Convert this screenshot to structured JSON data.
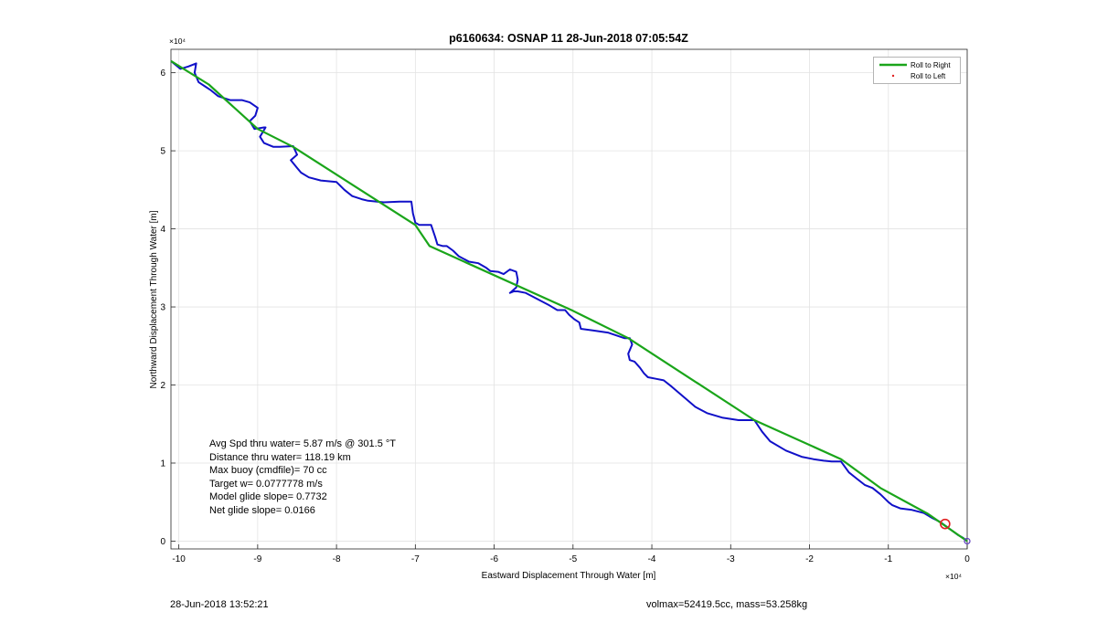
{
  "chart_data": {
    "type": "line",
    "title": "p6160634: OSNAP 11 28-Jun-2018 07:05:54Z",
    "xlabel": "Eastward Displacement Through Water [m]",
    "ylabel": "Northward Displacement Through Water [m]",
    "x_exponent_label": "×10⁴",
    "y_exponent_label": "×10⁴",
    "xlim": [
      -10.1,
      0
    ],
    "ylim": [
      -0.1,
      6.3
    ],
    "x_ticks": [
      "-10",
      "-9",
      "-8",
      "-7",
      "-6",
      "-5",
      "-4",
      "-3",
      "-2",
      "-1",
      "0"
    ],
    "y_ticks": [
      "0",
      "1",
      "2",
      "3",
      "4",
      "5",
      "6"
    ],
    "grid": true,
    "legend_position": "top-right",
    "series": [
      {
        "name": "Roll to Right",
        "color": "#1aa51a",
        "x": [
          -10.1,
          -9.62,
          -9.0,
          -8.55,
          -7.0,
          -6.82,
          -5.0,
          -4.3,
          -2.7,
          -1.6,
          -1.1,
          -0.5,
          0
        ],
        "y": [
          6.15,
          5.85,
          5.28,
          5.05,
          4.05,
          3.78,
          2.95,
          2.6,
          1.55,
          1.05,
          0.68,
          0.35,
          0
        ]
      },
      {
        "name": "Roll to Left",
        "color": "#e02020",
        "x": [],
        "y": []
      },
      {
        "name": "",
        "color": "#1010c8",
        "x": [
          -10.1,
          -9.98,
          -9.88,
          -9.78,
          -9.8,
          -9.75,
          -9.66,
          -9.6,
          -9.5,
          -9.35,
          -9.2,
          -9.1,
          -9.0,
          -9.03,
          -9.1,
          -9.04,
          -8.92,
          -8.9,
          -8.97,
          -8.92,
          -8.8,
          -8.72,
          -8.55,
          -8.5,
          -8.58,
          -8.5,
          -8.45,
          -8.35,
          -8.2,
          -8.0,
          -7.9,
          -7.8,
          -7.68,
          -7.6,
          -7.4,
          -7.2,
          -7.05,
          -7.03,
          -7.0,
          -6.95,
          -6.92,
          -6.8,
          -6.75,
          -6.72,
          -6.65,
          -6.6,
          -6.52,
          -6.45,
          -6.32,
          -6.2,
          -6.1,
          -6.05,
          -5.95,
          -5.88,
          -5.8,
          -5.72,
          -5.7,
          -5.72,
          -5.8,
          -5.75,
          -5.7,
          -5.6,
          -5.45,
          -5.3,
          -5.2,
          -5.1,
          -5.05,
          -4.98,
          -4.92,
          -4.9,
          -4.75,
          -4.55,
          -4.35,
          -4.28,
          -4.25,
          -4.3,
          -4.28,
          -4.22,
          -4.15,
          -4.1,
          -4.05,
          -3.95,
          -3.85,
          -3.75,
          -3.6,
          -3.45,
          -3.3,
          -3.1,
          -2.9,
          -2.7,
          -2.6,
          -2.5,
          -2.3,
          -2.1,
          -1.95,
          -1.82,
          -1.72,
          -1.6,
          -1.5,
          -1.4,
          -1.3,
          -1.2,
          -1.1,
          -1.0,
          -0.95,
          -0.85,
          -0.7,
          -0.55,
          -0.45,
          -0.35,
          -0.28,
          -0.2,
          -0.12,
          -0.05,
          0
        ],
        "y": [
          6.15,
          6.05,
          6.08,
          6.12,
          6.0,
          5.88,
          5.82,
          5.78,
          5.7,
          5.65,
          5.65,
          5.62,
          5.55,
          5.45,
          5.38,
          5.28,
          5.3,
          5.3,
          5.18,
          5.1,
          5.05,
          5.05,
          5.06,
          4.95,
          4.88,
          4.78,
          4.72,
          4.66,
          4.62,
          4.6,
          4.5,
          4.42,
          4.38,
          4.36,
          4.34,
          4.35,
          4.35,
          4.2,
          4.08,
          4.05,
          4.05,
          4.05,
          3.9,
          3.8,
          3.78,
          3.78,
          3.72,
          3.65,
          3.58,
          3.56,
          3.5,
          3.46,
          3.45,
          3.42,
          3.48,
          3.45,
          3.35,
          3.25,
          3.18,
          3.2,
          3.2,
          3.18,
          3.1,
          3.02,
          2.96,
          2.96,
          2.9,
          2.84,
          2.8,
          2.72,
          2.7,
          2.67,
          2.6,
          2.6,
          2.52,
          2.4,
          2.32,
          2.3,
          2.22,
          2.15,
          2.1,
          2.08,
          2.06,
          1.98,
          1.85,
          1.72,
          1.64,
          1.58,
          1.55,
          1.55,
          1.4,
          1.28,
          1.16,
          1.08,
          1.05,
          1.03,
          1.02,
          1.02,
          0.88,
          0.8,
          0.72,
          0.68,
          0.6,
          0.5,
          0.46,
          0.42,
          0.4,
          0.36,
          0.3,
          0.25,
          0.2,
          0.14,
          0.08,
          0.04,
          0
        ]
      }
    ],
    "annotations": [
      {
        "text": "Avg Spd thru water=  5.87 m/s @ 301.5 °T"
      },
      {
        "text": "Distance thru water= 118.19 km"
      },
      {
        "text": "Max buoy (cmdfile)= 70 cc"
      },
      {
        "text": "Target w= 0.0777778 m/s"
      },
      {
        "text": "Model glide slope= 0.7732"
      },
      {
        "text": "Net glide slope= 0.0166"
      }
    ]
  },
  "footer": {
    "date": "28-Jun-2018 13:52:21",
    "volume_mass": "volmax=52419.5cc, mass=53.258kg"
  }
}
